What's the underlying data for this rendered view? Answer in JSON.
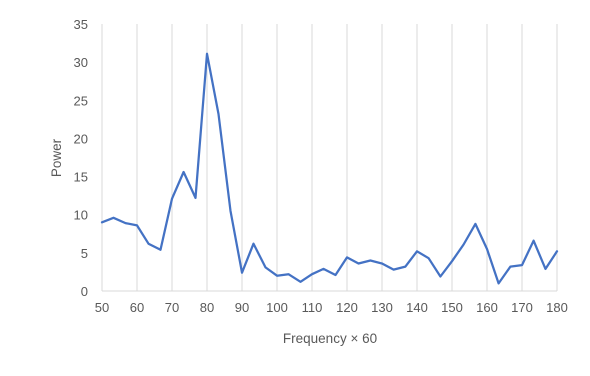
{
  "chart_data": {
    "type": "line",
    "xlabel": "Frequency × 60",
    "ylabel": "Power",
    "xlim": [
      50,
      180
    ],
    "ylim": [
      0,
      35
    ],
    "x_ticks": [
      50,
      60,
      70,
      80,
      90,
      100,
      110,
      120,
      130,
      140,
      150,
      160,
      170,
      180
    ],
    "y_ticks": [
      0,
      5,
      10,
      15,
      20,
      25,
      30,
      35
    ],
    "grid": "vertical",
    "series": [
      {
        "color": "#4472C4",
        "x": [
          50,
          53.3,
          56.7,
          60,
          63.3,
          66.7,
          70,
          73.3,
          76.7,
          80,
          83.3,
          86.7,
          90,
          93.3,
          96.7,
          100,
          103.3,
          106.7,
          110,
          113.3,
          116.7,
          120,
          123.3,
          126.7,
          130,
          133.3,
          136.7,
          140,
          143.3,
          146.7,
          150,
          153.3,
          156.7,
          160,
          163.3,
          166.7,
          170,
          173.3,
          176.7,
          180
        ],
        "y": [
          9.0,
          9.6,
          8.9,
          8.6,
          6.2,
          5.4,
          12.1,
          15.6,
          12.2,
          31.1,
          23.2,
          10.5,
          2.4,
          6.2,
          3.1,
          2.0,
          2.2,
          1.2,
          2.2,
          2.9,
          2.1,
          4.4,
          3.6,
          4.0,
          3.6,
          2.8,
          3.2,
          5.2,
          4.3,
          1.9,
          3.9,
          6.1,
          8.8,
          5.5,
          1.0,
          3.2,
          3.4,
          6.6,
          2.9,
          5.2
        ]
      }
    ]
  }
}
